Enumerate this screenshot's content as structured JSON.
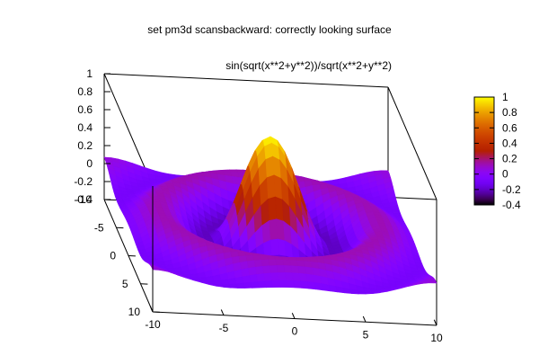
{
  "chart_data": {
    "type": "surface",
    "title": "set pm3d scansbackward: correctly looking surface",
    "function_label": "sin(sqrt(x**2+y**2))/sqrt(x**2+y**2)",
    "xlim": [
      -10,
      10
    ],
    "ylim": [
      -10,
      10
    ],
    "zlim": [
      -0.4,
      1
    ],
    "x_ticks": [
      {
        "value": -10,
        "label": "-10"
      },
      {
        "value": -5,
        "label": "-5"
      },
      {
        "value": 0,
        "label": "0"
      },
      {
        "value": 5,
        "label": "5"
      },
      {
        "value": 10,
        "label": "10"
      }
    ],
    "y_ticks": [
      {
        "value": -10,
        "label": "-10"
      },
      {
        "value": -5,
        "label": "-5"
      },
      {
        "value": 0,
        "label": "0"
      },
      {
        "value": 5,
        "label": "5"
      },
      {
        "value": 10,
        "label": "10"
      }
    ],
    "z_ticks": [
      {
        "value": 1,
        "label": "1"
      },
      {
        "value": 0.8,
        "label": "0.8"
      },
      {
        "value": 0.6,
        "label": "0.6"
      },
      {
        "value": 0.4,
        "label": "0.4"
      },
      {
        "value": 0.2,
        "label": "0.2"
      },
      {
        "value": 0,
        "label": "0"
      },
      {
        "value": -0.2,
        "label": "-0.2"
      },
      {
        "value": -0.4,
        "label": "-0.4"
      }
    ],
    "colorbar": {
      "range": [
        -0.4,
        1
      ],
      "ticks": [
        {
          "value": 1,
          "label": "1"
        },
        {
          "value": 0.8,
          "label": "0.8"
        },
        {
          "value": 0.6,
          "label": "0.6"
        },
        {
          "value": 0.4,
          "label": "0.4"
        },
        {
          "value": 0.2,
          "label": "0.2"
        },
        {
          "value": 0,
          "label": "0"
        },
        {
          "value": -0.2,
          "label": "-0.2"
        },
        {
          "value": -0.4,
          "label": "-0.4"
        }
      ],
      "palette": "black-blue-purple-red-orange-yellow"
    },
    "grid": false
  }
}
